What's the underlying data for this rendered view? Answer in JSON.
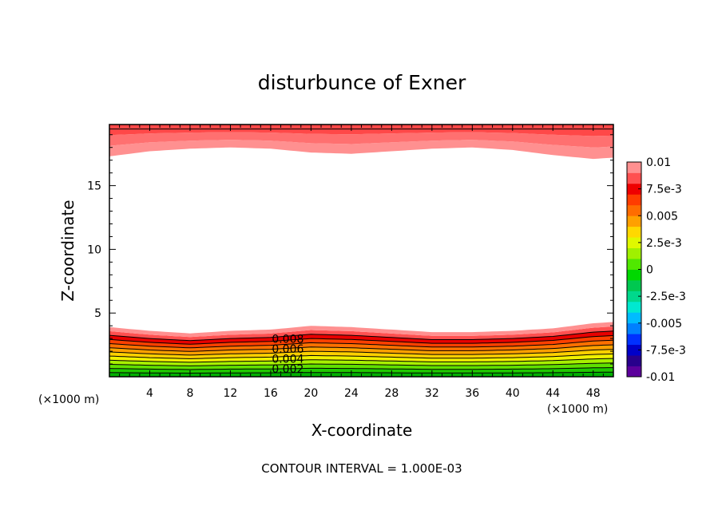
{
  "chart_data": {
    "type": "contour",
    "title": "disturbunce of Exner",
    "xlabel": "X-coordinate",
    "ylabel": "Z-coordinate",
    "x_unit_label": "(×1000 m)",
    "x_unit_label_right": "(×1000 m)",
    "xlim": [
      0,
      50
    ],
    "ylim": [
      0,
      19.8
    ],
    "x_ticks": [
      4,
      8,
      12,
      16,
      20,
      24,
      28,
      32,
      36,
      40,
      44,
      48
    ],
    "y_ticks": [
      5,
      10,
      15
    ],
    "colorbar": {
      "range": [
        -0.01,
        0.01
      ],
      "labels": [
        "0.01",
        "7.5e-3",
        "0.005",
        "2.5e-3",
        "0",
        "-2.5e-3",
        "-0.005",
        "-7.5e-3",
        "-0.01"
      ],
      "colors": [
        "#5c009c",
        "#28008c",
        "#0000c8",
        "#0030ff",
        "#0080ff",
        "#00bcff",
        "#00e8d0",
        "#00d88c",
        "#00c850",
        "#00d800",
        "#50e800",
        "#a0f000",
        "#e0f800",
        "#ffd800",
        "#ffa000",
        "#ff6c00",
        "#ff3c00",
        "#ee0000",
        "#ff5050",
        "#ff9090"
      ]
    },
    "contour_interval_text": "CONTOUR INTERVAL = 1.000E-03",
    "contour_labels": [
      "0.008",
      "0.006",
      "0.004",
      "0.002"
    ],
    "lower_layer_top_km": [
      [
        0,
        3.9
      ],
      [
        4,
        3.6
      ],
      [
        8,
        3.4
      ],
      [
        12,
        3.6
      ],
      [
        16,
        3.7
      ],
      [
        20,
        4.0
      ],
      [
        24,
        3.9
      ],
      [
        28,
        3.7
      ],
      [
        32,
        3.5
      ],
      [
        36,
        3.5
      ],
      [
        40,
        3.6
      ],
      [
        44,
        3.8
      ],
      [
        48,
        4.2
      ],
      [
        50,
        4.3
      ]
    ],
    "upper_layer_bottom_km": [
      [
        0,
        17.3
      ],
      [
        4,
        17.7
      ],
      [
        8,
        17.9
      ],
      [
        12,
        18.0
      ],
      [
        16,
        17.9
      ],
      [
        20,
        17.6
      ],
      [
        24,
        17.5
      ],
      [
        28,
        17.7
      ],
      [
        32,
        17.9
      ],
      [
        36,
        18.0
      ],
      [
        40,
        17.8
      ],
      [
        44,
        17.4
      ],
      [
        48,
        17.1
      ],
      [
        50,
        17.2
      ]
    ]
  }
}
